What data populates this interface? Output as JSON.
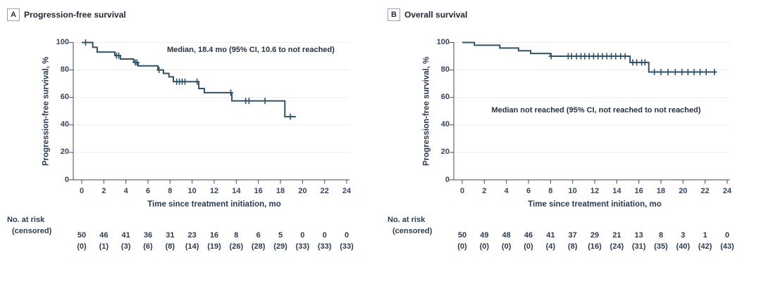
{
  "figure": {
    "panels": [
      {
        "label": "A",
        "title": "Progression-free survival",
        "annotation": "Median, 18.4 mo (95% CI, 10.6 to not reached)",
        "ylabel": "Progression-free survival, %",
        "xlabel": "Time since treatment initiation, mo",
        "risk_header_line1": "No. at risk",
        "risk_header_line2": "(censored)",
        "at_risk": [
          "50",
          "46",
          "41",
          "36",
          "31",
          "23",
          "16",
          "8",
          "6",
          "5",
          "0",
          "0",
          "0"
        ],
        "censored": [
          "(0)",
          "(1)",
          "(3)",
          "(6)",
          "(8)",
          "(14)",
          "(19)",
          "(26)",
          "(28)",
          "(29)",
          "(33)",
          "(33)",
          "(33)"
        ]
      },
      {
        "label": "B",
        "title": "Overall survival",
        "annotation": "Median not reached (95% CI, not reached to not reached)",
        "ylabel": "Progression-free survival, %",
        "xlabel": "Time since treatment initiation, mo",
        "risk_header_line1": "No. at risk",
        "risk_header_line2": "(censored)",
        "at_risk": [
          "50",
          "49",
          "48",
          "46",
          "41",
          "37",
          "29",
          "21",
          "13",
          "8",
          "3",
          "1",
          "0"
        ],
        "censored": [
          "(0)",
          "(0)",
          "(0)",
          "(0)",
          "(4)",
          "(8)",
          "(16)",
          "(24)",
          "(31)",
          "(35)",
          "(40)",
          "(42)",
          "(43)"
        ]
      }
    ]
  },
  "chart_data": [
    {
      "type": "line",
      "subtype": "kaplan-meier-step",
      "title": "Progression-free survival",
      "annotation": "Median, 18.4 mo (95% CI, 10.6 to not reached)",
      "xlabel": "Time since treatment initiation, mo",
      "ylabel": "Progression-free survival, %",
      "xlim": [
        0,
        24
      ],
      "ylim": [
        0,
        100
      ],
      "xticks": [
        0,
        2,
        4,
        6,
        8,
        10,
        12,
        14,
        16,
        18,
        20,
        22,
        24
      ],
      "yticks": [
        0,
        20,
        40,
        60,
        80,
        100
      ],
      "grid": "horizontal",
      "steps": [
        [
          0,
          100
        ],
        [
          1.0,
          96.5
        ],
        [
          1.4,
          93
        ],
        [
          3.0,
          90.5
        ],
        [
          3.5,
          88
        ],
        [
          4.7,
          85.5
        ],
        [
          5.1,
          83
        ],
        [
          6.9,
          80
        ],
        [
          7.4,
          77.5
        ],
        [
          7.9,
          75
        ],
        [
          8.3,
          71.5
        ],
        [
          10.6,
          66.5
        ],
        [
          11.1,
          63.5
        ],
        [
          13.6,
          57.5
        ],
        [
          18.4,
          46
        ]
      ],
      "end_time": 19.4,
      "censor_times": [
        0.35,
        3.15,
        3.35,
        4.85,
        5.0,
        7.0,
        8.6,
        8.85,
        9.1,
        9.35,
        10.45,
        13.5,
        14.85,
        15.15,
        16.6,
        18.9
      ],
      "risk_times": [
        0,
        2,
        4,
        6,
        8,
        10,
        12,
        14,
        16,
        18,
        20,
        22,
        24
      ],
      "at_risk": [
        50,
        46,
        41,
        36,
        31,
        23,
        16,
        8,
        6,
        5,
        0,
        0,
        0
      ],
      "censored_counts": [
        0,
        1,
        3,
        6,
        8,
        14,
        19,
        26,
        28,
        29,
        33,
        33,
        33
      ]
    },
    {
      "type": "line",
      "subtype": "kaplan-meier-step",
      "title": "Overall survival",
      "annotation": "Median not reached (95% CI, not reached to not reached)",
      "xlabel": "Time since treatment initiation, mo",
      "ylabel": "Progression-free survival, %",
      "xlim": [
        0,
        24
      ],
      "ylim": [
        0,
        100
      ],
      "xticks": [
        0,
        2,
        4,
        6,
        8,
        10,
        12,
        14,
        16,
        18,
        20,
        22,
        24
      ],
      "yticks": [
        0,
        20,
        40,
        60,
        80,
        100
      ],
      "grid": "horizontal",
      "steps": [
        [
          0,
          100
        ],
        [
          1.1,
          98
        ],
        [
          3.4,
          96
        ],
        [
          5.1,
          94
        ],
        [
          6.2,
          92
        ],
        [
          8.0,
          90
        ],
        [
          15.2,
          85.5
        ],
        [
          16.9,
          78.5
        ]
      ],
      "end_time": 23.0,
      "censor_times": [
        8.05,
        9.6,
        9.9,
        10.35,
        10.75,
        11.1,
        11.5,
        11.9,
        12.3,
        12.7,
        13.1,
        13.5,
        13.9,
        14.35,
        14.75,
        15.45,
        15.8,
        16.25,
        16.55,
        17.4,
        18.0,
        18.65,
        19.3,
        19.9,
        20.45,
        21.0,
        21.55,
        22.1,
        22.85
      ],
      "risk_times": [
        0,
        2,
        4,
        6,
        8,
        10,
        12,
        14,
        16,
        18,
        20,
        22,
        24
      ],
      "at_risk": [
        50,
        49,
        48,
        46,
        41,
        37,
        29,
        21,
        13,
        8,
        3,
        1,
        0
      ],
      "censored_counts": [
        0,
        0,
        0,
        0,
        4,
        8,
        16,
        24,
        31,
        35,
        40,
        42,
        43
      ]
    }
  ],
  "colors": {
    "curve": "#2F5266",
    "grid": "#EDEDED",
    "axis": "#4A4A4A",
    "title_text": "#1D2633",
    "navy_text": "#2C3A50",
    "tick_text": "#36455E"
  }
}
